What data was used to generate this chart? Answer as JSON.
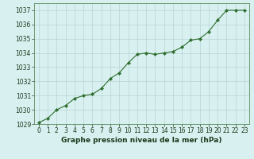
{
  "x": [
    0,
    1,
    2,
    3,
    4,
    5,
    6,
    7,
    8,
    9,
    10,
    11,
    12,
    13,
    14,
    15,
    16,
    17,
    18,
    19,
    20,
    21,
    22,
    23
  ],
  "y": [
    1029.1,
    1029.4,
    1030.0,
    1030.3,
    1030.8,
    1031.0,
    1031.1,
    1031.5,
    1032.2,
    1032.6,
    1033.3,
    1033.9,
    1034.0,
    1033.9,
    1034.0,
    1034.1,
    1034.4,
    1034.9,
    1035.0,
    1035.5,
    1036.3,
    1037.0,
    1037.0,
    1037.0
  ],
  "line_color": "#2d6e2d",
  "marker": "D",
  "marker_size": 2.2,
  "bg_color": "#d8f0f0",
  "grid_color": "#b8d4d4",
  "ylim": [
    1029,
    1037.5
  ],
  "yticks": [
    1029,
    1030,
    1031,
    1032,
    1033,
    1034,
    1035,
    1036,
    1037
  ],
  "xlim": [
    -0.5,
    23.5
  ],
  "xticks": [
    0,
    1,
    2,
    3,
    4,
    5,
    6,
    7,
    8,
    9,
    10,
    11,
    12,
    13,
    14,
    15,
    16,
    17,
    18,
    19,
    20,
    21,
    22,
    23
  ],
  "tick_fontsize": 5.5,
  "title": "Graphe pression niveau de la mer (hPa)",
  "title_fontsize": 6.5,
  "title_color": "#1a3a1a",
  "tick_color": "#1a3a1a",
  "spine_color": "#5a8a5a"
}
